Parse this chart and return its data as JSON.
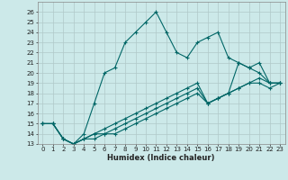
{
  "xlabel": "Humidex (Indice chaleur)",
  "background_color": "#cce9e9",
  "grid_color": "#b0c8c8",
  "line_color": "#006666",
  "xlim": [
    -0.5,
    23.5
  ],
  "ylim": [
    13,
    27
  ],
  "yticks": [
    13,
    14,
    15,
    16,
    17,
    18,
    19,
    20,
    21,
    22,
    23,
    24,
    25,
    26
  ],
  "xticks": [
    0,
    1,
    2,
    3,
    4,
    5,
    6,
    7,
    8,
    9,
    10,
    11,
    12,
    13,
    14,
    15,
    16,
    17,
    18,
    19,
    20,
    21,
    22,
    23
  ],
  "series1_x": [
    0,
    1,
    2,
    3,
    4,
    5,
    6,
    7,
    8,
    9,
    10,
    11,
    12,
    13,
    14,
    15,
    16,
    17,
    18,
    19,
    20,
    21,
    22,
    23
  ],
  "series1_y": [
    15,
    15,
    13.5,
    13,
    14,
    17,
    20,
    20.5,
    23,
    24,
    25,
    26,
    24,
    22,
    21.5,
    23,
    23.5,
    24,
    21.5,
    21,
    20.5,
    20,
    19,
    19
  ],
  "series2_x": [
    0,
    1,
    2,
    3,
    4,
    5,
    6,
    7,
    8,
    9,
    10,
    11,
    12,
    13,
    14,
    15,
    16,
    17,
    18,
    19,
    20,
    21,
    22,
    23
  ],
  "series2_y": [
    15,
    15,
    13.5,
    13,
    13.5,
    14,
    14.5,
    15,
    15.5,
    16,
    16.5,
    17,
    17.5,
    18,
    18.5,
    19,
    17,
    17.5,
    18,
    21,
    20.5,
    21,
    19,
    19
  ],
  "series3_x": [
    0,
    1,
    2,
    3,
    4,
    5,
    6,
    7,
    8,
    9,
    10,
    11,
    12,
    13,
    14,
    15,
    16,
    17,
    18,
    19,
    20,
    21,
    22,
    23
  ],
  "series3_y": [
    15,
    15,
    13.5,
    13,
    13.5,
    14,
    14,
    14.5,
    15,
    15.5,
    16,
    16.5,
    17,
    17.5,
    18,
    18.5,
    17,
    17.5,
    18,
    18.5,
    19,
    19.5,
    19,
    19
  ],
  "series4_x": [
    0,
    1,
    2,
    3,
    4,
    5,
    6,
    7,
    8,
    9,
    10,
    11,
    12,
    13,
    14,
    15,
    16,
    17,
    18,
    19,
    20,
    21,
    22,
    23
  ],
  "series4_y": [
    15,
    15,
    13.5,
    13,
    13.5,
    13.5,
    14,
    14,
    14.5,
    15,
    15.5,
    16,
    16.5,
    17,
    17.5,
    18,
    17,
    17.5,
    18,
    18.5,
    19,
    19,
    18.5,
    19
  ]
}
